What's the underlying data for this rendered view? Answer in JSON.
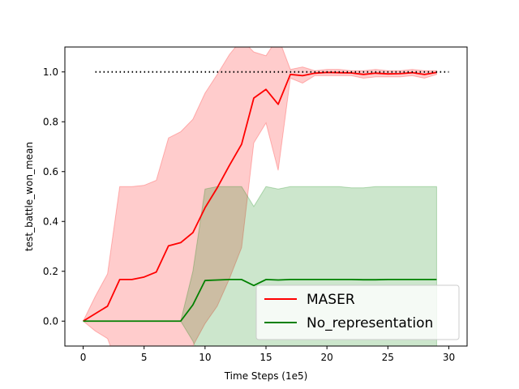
{
  "chart_data": {
    "type": "line",
    "title": "",
    "xlabel": "Time Steps (1e5)",
    "ylabel": "test_battle_won_mean",
    "xlim": [
      -1.5,
      31.5
    ],
    "ylim": [
      -0.1,
      1.1
    ],
    "xticks": [
      0,
      5,
      10,
      15,
      20,
      25,
      30
    ],
    "yticks": [
      0.0,
      0.2,
      0.4,
      0.6,
      0.8,
      1.0
    ],
    "xtick_labels": [
      "0",
      "5",
      "10",
      "15",
      "20",
      "25",
      "30"
    ],
    "ytick_labels": [
      "0.0",
      "0.2",
      "0.4",
      "0.6",
      "0.8",
      "1.0"
    ],
    "grid": false,
    "legend_position": "lower-right",
    "reference_line": {
      "y": 1.0,
      "x_start": 1,
      "x_end": 30,
      "style": "dotted",
      "color": "#000000"
    },
    "series": [
      {
        "name": "MASER",
        "color": "#ff0000",
        "band_color": "#ff0000",
        "band_opacity": 0.2,
        "x": [
          0,
          1,
          2,
          3,
          4,
          5,
          6,
          7,
          8,
          9,
          10,
          11,
          12,
          13,
          14,
          15,
          16,
          17,
          18,
          19,
          20,
          21,
          22,
          23,
          24,
          25,
          26,
          27,
          28,
          29
        ],
        "mean": [
          0.0,
          0.03,
          0.06,
          0.167,
          0.167,
          0.177,
          0.197,
          0.302,
          0.315,
          0.355,
          0.455,
          0.535,
          0.625,
          0.71,
          0.895,
          0.93,
          0.87,
          0.99,
          0.985,
          0.995,
          0.998,
          0.997,
          0.996,
          0.99,
          0.995,
          0.992,
          0.993,
          0.997,
          0.99,
          0.998
        ],
        "upper": [
          0.0,
          0.1,
          0.19,
          0.54,
          0.54,
          0.545,
          0.565,
          0.735,
          0.76,
          0.81,
          0.915,
          0.99,
          1.07,
          1.13,
          1.08,
          1.065,
          1.14,
          1.01,
          1.02,
          1.005,
          1.01,
          1.01,
          1.005,
          1.005,
          1.01,
          1.005,
          1.005,
          1.01,
          1.005,
          1.005
        ],
        "lower": [
          0.0,
          -0.04,
          -0.07,
          -0.2,
          -0.2,
          -0.2,
          -0.17,
          -0.13,
          -0.13,
          -0.1,
          -0.01,
          0.06,
          0.17,
          0.295,
          0.715,
          0.795,
          0.605,
          0.975,
          0.955,
          0.985,
          0.985,
          0.985,
          0.985,
          0.975,
          0.98,
          0.98,
          0.98,
          0.985,
          0.975,
          0.99
        ]
      },
      {
        "name": "No_representation",
        "color": "#008000",
        "band_color": "#008000",
        "band_opacity": 0.2,
        "x": [
          0,
          1,
          2,
          3,
          4,
          5,
          6,
          7,
          8,
          9,
          10,
          11,
          12,
          13,
          14,
          15,
          16,
          17,
          18,
          19,
          20,
          21,
          22,
          23,
          24,
          25,
          26,
          27,
          28,
          29
        ],
        "mean": [
          0.0,
          0.0,
          0.0,
          0.0,
          0.0,
          0.0,
          0.0,
          0.0,
          0.0,
          0.065,
          0.163,
          0.165,
          0.167,
          0.167,
          0.143,
          0.167,
          0.165,
          0.167,
          0.167,
          0.167,
          0.167,
          0.167,
          0.167,
          0.166,
          0.166,
          0.167,
          0.167,
          0.167,
          0.167,
          0.167
        ],
        "upper": [
          0.0,
          0.0,
          0.0,
          0.0,
          0.0,
          0.0,
          0.0,
          0.0,
          0.0,
          0.2,
          0.53,
          0.54,
          0.54,
          0.54,
          0.46,
          0.54,
          0.53,
          0.54,
          0.54,
          0.54,
          0.54,
          0.54,
          0.535,
          0.535,
          0.54,
          0.54,
          0.54,
          0.54,
          0.54,
          0.54
        ],
        "lower": [
          0.0,
          0.0,
          0.0,
          0.0,
          0.0,
          0.0,
          0.0,
          0.0,
          0.0,
          -0.08,
          -0.2,
          -0.2,
          -0.2,
          -0.2,
          -0.2,
          -0.2,
          -0.2,
          -0.2,
          -0.2,
          -0.2,
          -0.2,
          -0.2,
          -0.2,
          -0.2,
          -0.2,
          -0.2,
          -0.2,
          -0.2,
          -0.2,
          -0.2
        ]
      }
    ]
  }
}
